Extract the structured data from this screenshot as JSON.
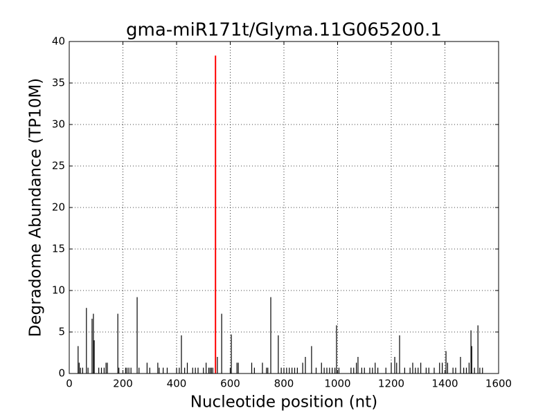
{
  "chart_data": {
    "type": "stem",
    "title": "gma-miR171t/Glyma.11G065200.1",
    "x_label": "Nucleotide position (nt)",
    "y_label": "Degradome Abundance (TP10M)",
    "xlim": [
      0,
      1600
    ],
    "xticks": [
      0,
      200,
      400,
      600,
      800,
      1000,
      1200,
      1400,
      1600
    ],
    "ylim": [
      0,
      40
    ],
    "yticks": [
      0,
      5,
      10,
      15,
      20,
      25,
      30,
      35,
      40
    ],
    "grid": true,
    "series": [
      {
        "color": "#000000",
        "x": [
          33,
          37,
          42,
          50,
          64,
          70,
          85,
          90,
          93,
          110,
          120,
          130,
          137,
          142,
          181,
          185,
          210,
          215,
          222,
          230,
          253,
          260,
          290,
          300,
          330,
          335,
          350,
          365,
          400,
          410,
          418,
          430,
          440,
          460,
          470,
          480,
          500,
          510,
          520,
          525,
          530,
          535,
          552,
          568,
          600,
          604,
          625,
          630,
          680,
          690,
          720,
          735,
          740,
          751,
          779,
          790,
          800,
          810,
          820,
          830,
          840,
          850,
          870,
          880,
          903,
          920,
          940,
          950,
          960,
          970,
          980,
          990,
          996,
          1005,
          1050,
          1060,
          1070,
          1076,
          1090,
          1100,
          1120,
          1130,
          1140,
          1150,
          1180,
          1200,
          1213,
          1220,
          1231,
          1250,
          1270,
          1280,
          1290,
          1300,
          1310,
          1330,
          1340,
          1360,
          1380,
          1390,
          1404,
          1410,
          1430,
          1440,
          1458,
          1470,
          1480,
          1490,
          1497,
          1500,
          1510,
          1523,
          1530,
          1540
        ],
        "values": [
          3.3,
          1.3,
          0.7,
          0.7,
          7.9,
          0.7,
          6.6,
          7.2,
          4.0,
          0.7,
          0.7,
          0.7,
          1.3,
          1.3,
          7.2,
          0.7,
          0.7,
          0.7,
          0.7,
          0.7,
          9.2,
          0.7,
          1.3,
          0.7,
          1.3,
          0.7,
          0.7,
          0.7,
          0.7,
          0.7,
          4.6,
          0.7,
          1.3,
          0.7,
          0.7,
          0.7,
          0.7,
          1.3,
          0.7,
          0.7,
          0.7,
          0.7,
          2.0,
          7.2,
          0.7,
          4.7,
          1.3,
          1.3,
          1.3,
          0.7,
          1.3,
          0.7,
          0.7,
          9.2,
          4.6,
          0.7,
          0.7,
          0.7,
          0.7,
          0.7,
          0.7,
          0.7,
          1.3,
          2.0,
          3.3,
          0.7,
          1.3,
          0.7,
          0.7,
          0.7,
          0.7,
          0.7,
          5.8,
          0.7,
          0.7,
          0.7,
          1.3,
          2.0,
          0.7,
          0.7,
          0.7,
          0.7,
          1.3,
          0.7,
          0.7,
          1.3,
          2.0,
          1.3,
          4.6,
          0.7,
          0.7,
          1.3,
          0.7,
          0.7,
          1.3,
          0.7,
          0.7,
          0.7,
          1.3,
          1.3,
          2.7,
          1.3,
          0.7,
          0.7,
          2.0,
          0.7,
          0.7,
          1.3,
          5.2,
          3.3,
          0.7,
          5.8,
          0.7,
          0.7
        ]
      },
      {
        "color": "#ff0000",
        "x": [
          545
        ],
        "values": [
          38.3
        ]
      }
    ]
  }
}
